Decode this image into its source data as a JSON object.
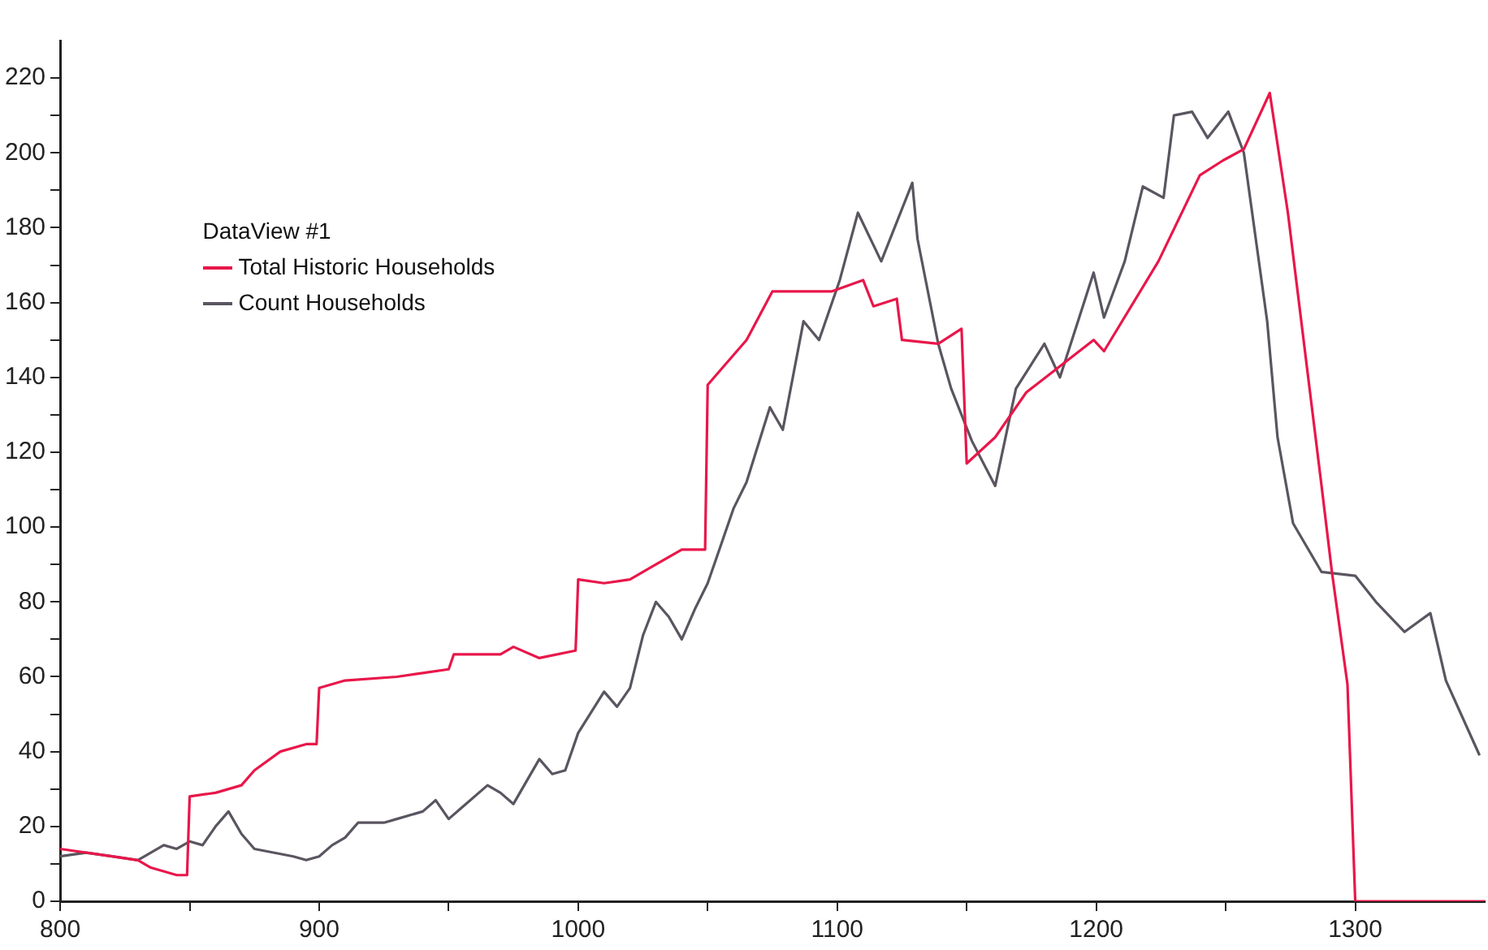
{
  "chart_data": {
    "type": "line",
    "legend_title": "DataView #1",
    "legend": "top left",
    "grid": false,
    "marker": "none",
    "line_style": "solid",
    "xlim": [
      800,
      1350
    ],
    "ylim": [
      0,
      230
    ],
    "xticks": [
      800,
      {
        "value": 850,
        "label": null
      },
      900,
      {
        "value": 950,
        "label": null
      },
      1000,
      {
        "value": 1050,
        "label": null
      },
      1100,
      {
        "value": 1150,
        "label": null
      },
      1200,
      {
        "value": 1250,
        "label": null
      },
      1300
    ],
    "yticks": [
      0,
      {
        "value": 10,
        "label": null
      },
      20,
      {
        "value": 30,
        "label": null
      },
      40,
      {
        "value": 50,
        "label": null
      },
      60,
      {
        "value": 70,
        "label": null
      },
      80,
      {
        "value": 90,
        "label": null
      },
      100,
      {
        "value": 110,
        "label": null
      },
      120,
      {
        "value": 130,
        "label": null
      },
      140,
      {
        "value": 150,
        "label": null
      },
      160,
      {
        "value": 170,
        "label": null
      },
      180,
      {
        "value": 190,
        "label": null
      },
      200,
      {
        "value": 210,
        "label": null
      },
      220
    ],
    "series": [
      {
        "name": "Total Historic Households",
        "color": "#e8174a",
        "x": [
          800,
          820,
          830,
          835,
          845,
          849,
          850,
          860,
          870,
          875,
          885,
          895,
          899,
          900,
          910,
          930,
          940,
          950,
          952,
          970,
          975,
          985,
          999,
          1000,
          1010,
          1020,
          1030,
          1040,
          1049,
          1050,
          1055,
          1065,
          1075,
          1085,
          1098,
          1110,
          1114,
          1123,
          1125,
          1139,
          1148,
          1150,
          1161,
          1173,
          1199,
          1203,
          1224,
          1240,
          1249,
          1257,
          1267,
          1274,
          1287,
          1291,
          1297,
          1300,
          1350
        ],
        "values": [
          14,
          12,
          11,
          9,
          7,
          7,
          28,
          29,
          31,
          35,
          40,
          42,
          42,
          57,
          59,
          60,
          61,
          62,
          66,
          66,
          68,
          65,
          67,
          86,
          85,
          86,
          90,
          94,
          94,
          138,
          142,
          150,
          163,
          163,
          163,
          166,
          159,
          161,
          150,
          149,
          153,
          117,
          124,
          136,
          150,
          147,
          171,
          194,
          198,
          201,
          216,
          184,
          111,
          88,
          58,
          0,
          0
        ]
      },
      {
        "name": "Count Households",
        "color": "#5a5560",
        "x": [
          800,
          810,
          820,
          830,
          840,
          845,
          850,
          855,
          860,
          865,
          870,
          875,
          890,
          895,
          900,
          905,
          910,
          915,
          925,
          930,
          940,
          945,
          950,
          955,
          965,
          970,
          975,
          985,
          990,
          995,
          1000,
          1010,
          1015,
          1020,
          1025,
          1030,
          1035,
          1040,
          1045,
          1050,
          1055,
          1060,
          1065,
          1074,
          1079,
          1087,
          1093,
          1101,
          1108,
          1117,
          1125,
          1129,
          1131,
          1139,
          1144,
          1152,
          1161,
          1169,
          1180,
          1186,
          1199,
          1203,
          1211,
          1218,
          1226,
          1230,
          1237,
          1243,
          1251,
          1257,
          1266,
          1270,
          1276,
          1287,
          1300,
          1308,
          1319,
          1329,
          1335,
          1348
        ],
        "values": [
          12,
          13,
          12,
          11,
          15,
          14,
          16,
          15,
          20,
          24,
          18,
          14,
          12,
          11,
          12,
          15,
          17,
          21,
          21,
          22,
          24,
          27,
          22,
          25,
          31,
          29,
          26,
          38,
          34,
          35,
          45,
          56,
          52,
          57,
          71,
          80,
          76,
          70,
          78,
          85,
          95,
          105,
          112,
          132,
          126,
          155,
          150,
          166,
          184,
          171,
          185,
          192,
          177,
          149,
          137,
          123,
          111,
          137,
          149,
          140,
          168,
          156,
          171,
          191,
          188,
          210,
          211,
          204,
          211,
          200,
          155,
          124,
          101,
          88,
          87,
          80,
          72,
          77,
          59,
          39
        ]
      }
    ]
  }
}
